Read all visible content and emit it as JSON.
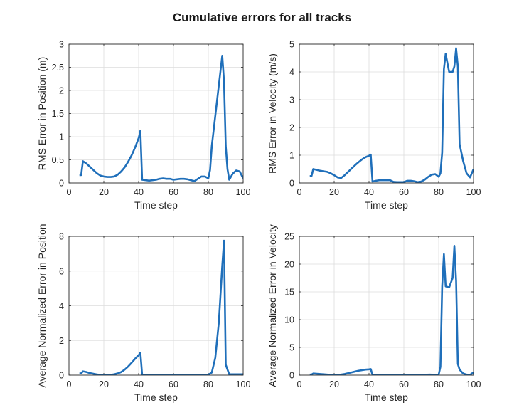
{
  "title": "Cumulative errors for all tracks",
  "colors": {
    "line": "#1f6fba",
    "grid": "#dcdcdc",
    "axis": "#262626"
  },
  "chart_data": [
    {
      "type": "line",
      "xlabel": "Time step",
      "ylabel": "RMS Error in Position (m)",
      "xlim": [
        0,
        100
      ],
      "ylim": [
        0,
        3
      ],
      "xticks": [
        0,
        20,
        40,
        60,
        80,
        100
      ],
      "yticks": [
        0,
        0.5,
        1,
        1.5,
        2,
        2.5,
        3
      ],
      "yticklabels": [
        "0",
        "0.5",
        "1",
        "1.5",
        "2",
        "2.5",
        "3"
      ],
      "grid": true,
      "series": [
        {
          "x": [
            6,
            7,
            8,
            10,
            12,
            14,
            16,
            18,
            20,
            22,
            24,
            26,
            28,
            30,
            32,
            34,
            36,
            38,
            40,
            41,
            42,
            44,
            46,
            48,
            50,
            52,
            54,
            56,
            58,
            60,
            62,
            64,
            66,
            68,
            70,
            72,
            74,
            76,
            78,
            80,
            81,
            82,
            84,
            86,
            88,
            89,
            90,
            91,
            92,
            94,
            96,
            98,
            100
          ],
          "y": [
            0.17,
            0.17,
            0.47,
            0.42,
            0.35,
            0.28,
            0.21,
            0.16,
            0.14,
            0.13,
            0.13,
            0.14,
            0.18,
            0.25,
            0.34,
            0.46,
            0.6,
            0.77,
            0.97,
            1.13,
            0.07,
            0.06,
            0.05,
            0.06,
            0.07,
            0.09,
            0.1,
            0.09,
            0.09,
            0.07,
            0.08,
            0.09,
            0.09,
            0.08,
            0.06,
            0.04,
            0.09,
            0.14,
            0.14,
            0.1,
            0.28,
            0.8,
            1.45,
            2.1,
            2.75,
            2.2,
            0.8,
            0.3,
            0.07,
            0.2,
            0.27,
            0.25,
            0.1
          ]
        }
      ]
    },
    {
      "type": "line",
      "xlabel": "Time step",
      "ylabel": "RMS Error in Velocity (m/s)",
      "xlim": [
        0,
        100
      ],
      "ylim": [
        0,
        5
      ],
      "xticks": [
        0,
        20,
        40,
        60,
        80,
        100
      ],
      "yticks": [
        0,
        1,
        2,
        3,
        4,
        5
      ],
      "yticklabels": [
        "0",
        "1",
        "2",
        "3",
        "4",
        "5"
      ],
      "grid": true,
      "series": [
        {
          "x": [
            6,
            7,
            8,
            10,
            12,
            14,
            16,
            18,
            20,
            22,
            24,
            26,
            28,
            30,
            32,
            34,
            36,
            38,
            40,
            41,
            42,
            44,
            46,
            48,
            50,
            52,
            54,
            56,
            58,
            60,
            62,
            64,
            66,
            68,
            70,
            72,
            74,
            76,
            78,
            80,
            81,
            82,
            83,
            84,
            86,
            88,
            89,
            90,
            91,
            92,
            94,
            96,
            98,
            100
          ],
          "y": [
            0.25,
            0.25,
            0.5,
            0.47,
            0.44,
            0.42,
            0.4,
            0.35,
            0.28,
            0.2,
            0.18,
            0.28,
            0.4,
            0.52,
            0.64,
            0.75,
            0.85,
            0.93,
            0.98,
            1.02,
            0.05,
            0.08,
            0.1,
            0.1,
            0.1,
            0.1,
            0.04,
            0.03,
            0.03,
            0.03,
            0.08,
            0.08,
            0.06,
            0.03,
            0.05,
            0.12,
            0.22,
            0.3,
            0.32,
            0.22,
            0.35,
            1.1,
            4.1,
            4.65,
            4.0,
            4.0,
            4.2,
            4.85,
            4.2,
            1.4,
            0.8,
            0.35,
            0.2,
            0.5
          ]
        }
      ]
    },
    {
      "type": "line",
      "xlabel": "Time step",
      "ylabel": "Average Normalized Error in Position",
      "xlim": [
        0,
        100
      ],
      "ylim": [
        0,
        8
      ],
      "xticks": [
        0,
        20,
        40,
        60,
        80,
        100
      ],
      "yticks": [
        0,
        2,
        4,
        6,
        8
      ],
      "yticklabels": [
        "0",
        "2",
        "4",
        "6",
        "8"
      ],
      "grid": true,
      "series": [
        {
          "x": [
            6,
            7,
            8,
            10,
            12,
            14,
            16,
            18,
            20,
            22,
            24,
            26,
            28,
            30,
            32,
            34,
            36,
            38,
            40,
            41,
            42,
            44,
            50,
            60,
            70,
            80,
            82,
            84,
            86,
            88,
            89,
            90,
            92,
            95,
            100
          ],
          "y": [
            0.1,
            0.1,
            0.22,
            0.18,
            0.12,
            0.08,
            0.04,
            0.02,
            0.01,
            0.01,
            0.02,
            0.05,
            0.1,
            0.18,
            0.32,
            0.5,
            0.72,
            0.95,
            1.15,
            1.3,
            0.02,
            0.02,
            0.02,
            0.02,
            0.02,
            0.02,
            0.15,
            1.0,
            3.0,
            6.3,
            7.75,
            0.6,
            0.05,
            0.05,
            0.05
          ]
        }
      ]
    },
    {
      "type": "line",
      "xlabel": "Time step",
      "ylabel": "Average Normalized Error in Velocity",
      "xlim": [
        0,
        100
      ],
      "ylim": [
        0,
        25
      ],
      "xticks": [
        0,
        20,
        40,
        60,
        80,
        100
      ],
      "yticks": [
        0,
        5,
        10,
        15,
        20,
        25
      ],
      "yticklabels": [
        "0",
        "5",
        "10",
        "15",
        "20",
        "25"
      ],
      "grid": true,
      "series": [
        {
          "x": [
            6,
            7,
            8,
            10,
            12,
            14,
            16,
            18,
            20,
            22,
            24,
            26,
            28,
            30,
            32,
            34,
            36,
            38,
            40,
            41,
            42,
            44,
            50,
            55,
            60,
            65,
            70,
            75,
            78,
            80,
            81,
            82,
            83,
            84,
            86,
            88,
            89,
            90,
            91,
            92,
            94,
            96,
            98,
            100
          ],
          "y": [
            0.1,
            0.1,
            0.3,
            0.25,
            0.2,
            0.15,
            0.1,
            0.05,
            0.0,
            0.05,
            0.1,
            0.2,
            0.35,
            0.5,
            0.65,
            0.8,
            0.9,
            1.0,
            1.05,
            1.1,
            0.05,
            0.05,
            0.05,
            0.05,
            0.05,
            0.05,
            0.05,
            0.1,
            0.05,
            0.1,
            1.5,
            16.0,
            21.8,
            16.0,
            15.8,
            17.5,
            23.3,
            17.0,
            2.0,
            1.0,
            0.3,
            0.1,
            0.05,
            0.5
          ]
        }
      ]
    }
  ]
}
